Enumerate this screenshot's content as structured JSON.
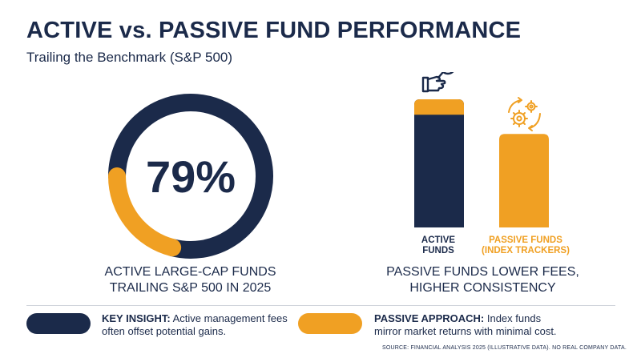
{
  "title": "ACTIVE vs. PASSIVE FUND PERFORMANCE",
  "subtitle": "Trailing the Benchmark (S&P 500)",
  "colors": {
    "navy": "#1b2a4a",
    "orange": "#f0a023"
  },
  "chart_data": [
    {
      "type": "pie",
      "variant": "donut",
      "center_label": "79%",
      "caption_lines": [
        "ACTIVE LARGE-CAP FUNDS",
        "TRAILING S&P 500 IN 2025"
      ],
      "slices": [
        {
          "value": 79,
          "color": "#1b2a4a"
        },
        {
          "value": 21,
          "color": "#f0a023"
        }
      ]
    },
    {
      "type": "bar",
      "categories": [
        "ACTIVE\nFUNDS",
        "PASSIVE FUNDS\n(INDEX TRACKERS)"
      ],
      "icons": [
        "magnifier-hand-icon",
        "gears-cycle-icon"
      ],
      "series": [
        {
          "values": [
            {
              "total": 100,
              "top_segment": 12,
              "colors": [
                "#1b2a4a",
                "#f0a023"
              ]
            },
            {
              "total": 73,
              "top_segment": 73,
              "colors": [
                "#f0a023"
              ]
            }
          ]
        }
      ],
      "caption_lines": [
        "PASSIVE FUNDS LOWER FEES,",
        "HIGHER CONSISTENCY"
      ]
    }
  ],
  "insights": [
    {
      "label": "KEY INSIGHT:",
      "text": " Active management fees often offset potential gains."
    },
    {
      "label": "PASSIVE APPROACH:",
      "text": " Index funds mirror market returns with minimal cost."
    }
  ],
  "source": "SOURCE: FINANCIAL ANALYSIS 2025 (ILLUSTRATIVE DATA). NO REAL COMPANY DATA."
}
